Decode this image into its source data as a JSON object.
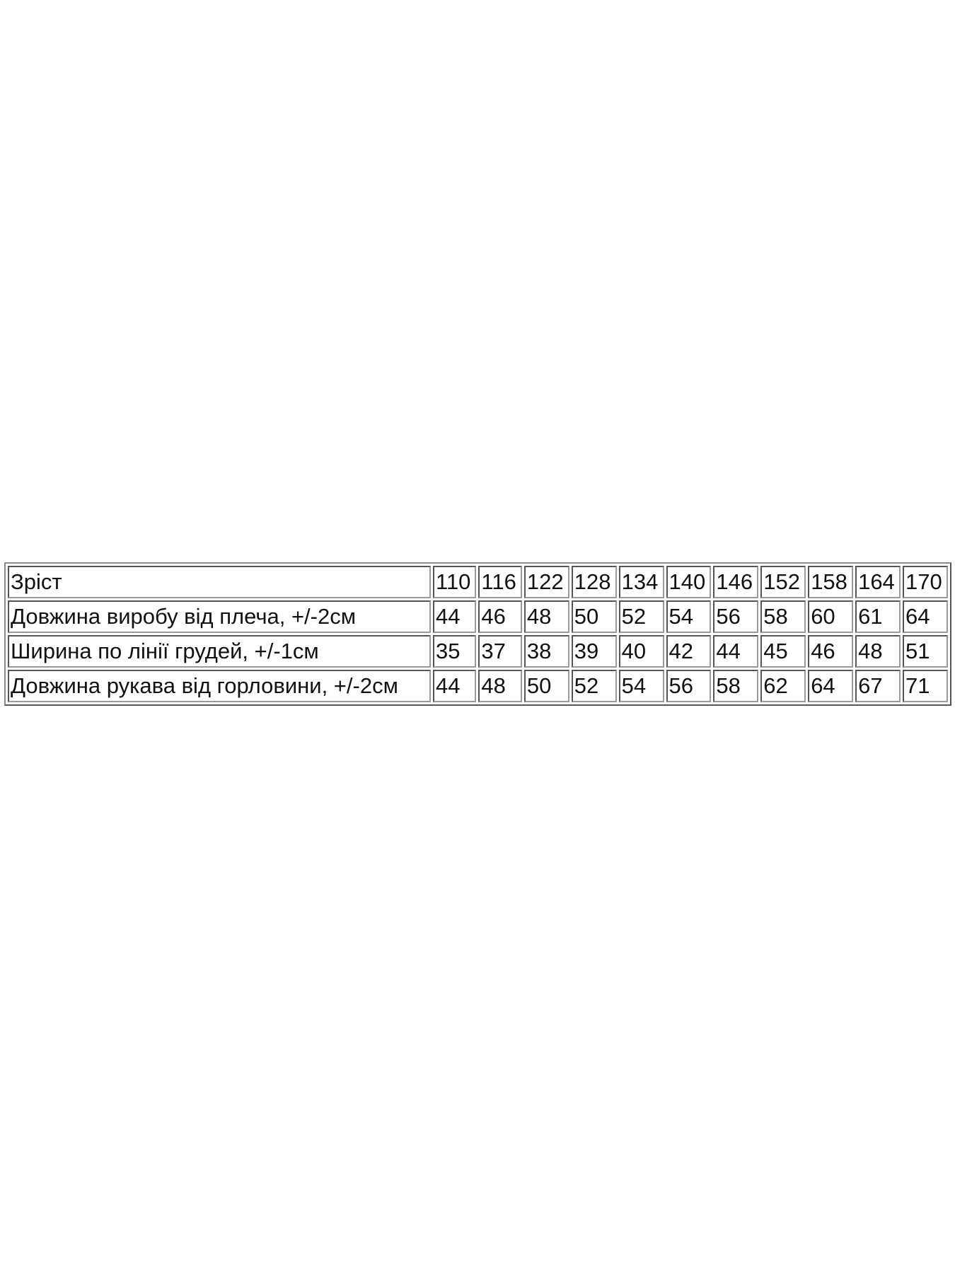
{
  "table": {
    "rows": [
      {
        "label": "Зріст",
        "values": [
          "110",
          "116",
          "122",
          "128",
          "134",
          "140",
          "146",
          "152",
          "158",
          "164",
          "170"
        ]
      },
      {
        "label": "Довжина виробу від плеча, +/-2см",
        "values": [
          "44",
          "46",
          "48",
          "50",
          "52",
          "54",
          "56",
          "58",
          "60",
          "61",
          "64"
        ]
      },
      {
        "label": "Ширина по лінії грудей, +/-1см",
        "values": [
          "35",
          "37",
          "38",
          "39",
          "40",
          "42",
          "44",
          "45",
          "46",
          "48",
          "51"
        ]
      },
      {
        "label": "Довжина рукава від горловини, +/-2см",
        "values": [
          "44",
          "48",
          "50",
          "52",
          "54",
          "56",
          "58",
          "62",
          "64",
          "67",
          "71"
        ]
      }
    ]
  }
}
